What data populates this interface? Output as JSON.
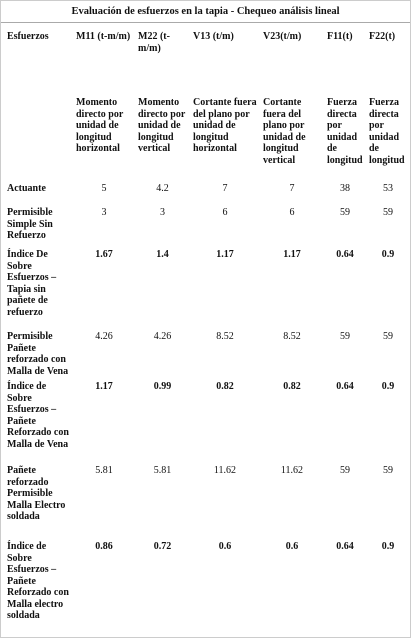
{
  "title": "Evaluación de esfuerzos en la tapia - Chequeo análisis lineal",
  "table": {
    "header": [
      "Esfuerzos",
      "M11 (t-m/m)",
      "M22 (t-m/m)",
      "V13 (t/m)",
      "V23(t/m)",
      "F11(t)",
      "F22(t)"
    ],
    "descriptions": [
      "Momento directo por unidad de longitud horizontal",
      "Momento directo por unidad de longitud vertical",
      "Cortante fuera del plano por unidad de longitud horizontal",
      "Cortante fuera del plano por unidad de longitud vertical",
      "Fuerza directa por unidad de longitud",
      "Fuerza directa por unidad de longitud"
    ],
    "rows": [
      {
        "label": "Actuante",
        "values": [
          "5",
          "4.2",
          "7",
          "7",
          "38",
          "53"
        ]
      },
      {
        "label": "Permisible Simple Sin Refuerzo",
        "values": [
          "3",
          "3",
          "6",
          "6",
          "59",
          "59"
        ]
      },
      {
        "label": "Índice De Sobre Esfuerzos –Tapia sin pañete de refuerzo",
        "values": [
          "1.67",
          "1.4",
          "1.17",
          "1.17",
          "0.64",
          "0.9"
        ]
      },
      {
        "label": "Permisible Pañete reforzado con Malla de Vena",
        "values": [
          "4.26",
          "4.26",
          "8.52",
          "8.52",
          "59",
          "59"
        ]
      },
      {
        "label": "Índice de Sobre Esfuerzos –Pañete Reforzado con Malla de Vena",
        "values": [
          "1.17",
          "0.99",
          "0.82",
          "0.82",
          "0.64",
          "0.9"
        ]
      },
      {
        "label": "Pañete reforzado Permisible Malla Electro soldada",
        "values": [
          "5.81",
          "5.81",
          "11.62",
          "11.62",
          "59",
          "59"
        ]
      },
      {
        "label": "Índice de Sobre Esfuerzos –Pañete Reforzado con Malla electro soldada",
        "values": [
          "0.86",
          "0.72",
          "0.6",
          "0.6",
          "0.64",
          "0.9"
        ]
      }
    ]
  }
}
